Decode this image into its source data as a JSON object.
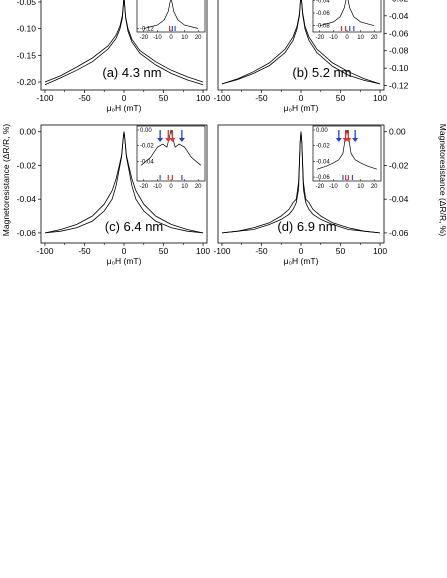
{
  "figure": {
    "shared_ylabel_left": "Magnetoresistance (ΔR/R, %)",
    "shared_ylabel_right": "Magnetoresistance (ΔR/R, %)",
    "xlabel": "μ₀H (mT)"
  },
  "chart_data": [
    {
      "type": "line",
      "title": "(a) 4.3 nm",
      "xlabel": "μ₀H (mT)",
      "ylabel": "Magnetoresistance (ΔR/R, %)",
      "xlim": [
        -105,
        105
      ],
      "ylim": [
        -0.215,
        -0.035
      ],
      "xticks": [
        -100,
        -50,
        0,
        50,
        100
      ],
      "yticks": [
        -0.05,
        -0.1,
        -0.15,
        -0.2
      ],
      "ytick_labels": [
        "-0.05",
        "-0.10",
        "-0.15",
        "-0.20"
      ],
      "series": [
        {
          "x": [
            -100,
            -80,
            -60,
            -40,
            -20,
            -10,
            -5,
            -2,
            0,
            2,
            5,
            10,
            20,
            40,
            60,
            80,
            100
          ],
          "y": [
            -0.205,
            -0.192,
            -0.178,
            -0.162,
            -0.138,
            -0.118,
            -0.1,
            -0.08,
            -0.04,
            -0.08,
            -0.105,
            -0.125,
            -0.146,
            -0.168,
            -0.184,
            -0.196,
            -0.205
          ]
        },
        {
          "x": [
            -100,
            -80,
            -60,
            -40,
            -20,
            -10,
            -5,
            -2,
            0,
            2,
            5,
            10,
            20,
            40,
            60,
            80,
            100
          ],
          "y": [
            -0.2,
            -0.188,
            -0.172,
            -0.155,
            -0.132,
            -0.112,
            -0.095,
            -0.075,
            -0.04,
            -0.078,
            -0.1,
            -0.12,
            -0.141,
            -0.162,
            -0.178,
            -0.19,
            -0.2
          ]
        }
      ],
      "inset": {
        "xlim": [
          -25,
          25
        ],
        "ylim": [
          -0.13,
          -0.02
        ],
        "xticks": [
          -20,
          -10,
          0,
          10,
          20
        ],
        "yticks": [
          -0.12
        ],
        "ytick_labels": [
          "-0.12"
        ],
        "series": [
          {
            "x": [
              -20,
              -10,
              -5,
              -2,
              0,
              2,
              5,
              10,
              20
            ],
            "y": [
              -0.12,
              -0.11,
              -0.095,
              -0.07,
              -0.03,
              -0.07,
              -0.095,
              -0.11,
              -0.12
            ]
          }
        ],
        "markers": [
          {
            "x": -1,
            "color": "#e03030"
          },
          {
            "x": 1,
            "color": "#3050d0"
          },
          {
            "x": 3,
            "color": "#3050d0"
          }
        ]
      }
    },
    {
      "type": "line",
      "title": "(b) 5.2 nm",
      "xlabel": "μ₀H (mT)",
      "ylabel": "Magnetoresistance (ΔR/R, %)",
      "xlim": [
        -105,
        105
      ],
      "ylim": [
        -0.125,
        -0.015
      ],
      "xticks": [
        -100,
        -50,
        0,
        50,
        100
      ],
      "yticks": [
        -0.02,
        -0.04,
        -0.06,
        -0.08,
        -0.1,
        -0.12
      ],
      "ytick_labels": [
        "-0.02",
        "-0.04",
        "-0.06",
        "-0.08",
        "-0.10",
        "-0.12"
      ],
      "series": [
        {
          "x": [
            -100,
            -80,
            -60,
            -40,
            -20,
            -10,
            -5,
            -2,
            0,
            2,
            5,
            10,
            20,
            40,
            60,
            80,
            100
          ],
          "y": [
            -0.118,
            -0.112,
            -0.104,
            -0.094,
            -0.078,
            -0.064,
            -0.052,
            -0.038,
            -0.015,
            -0.038,
            -0.055,
            -0.068,
            -0.082,
            -0.098,
            -0.108,
            -0.114,
            -0.118
          ]
        },
        {
          "x": [
            -100,
            -80,
            -60,
            -40,
            -20,
            -10,
            -5,
            -2,
            0,
            2,
            5,
            10,
            20,
            40,
            60,
            80,
            100
          ],
          "y": [
            -0.118,
            -0.113,
            -0.106,
            -0.097,
            -0.082,
            -0.068,
            -0.055,
            -0.04,
            -0.015,
            -0.036,
            -0.052,
            -0.064,
            -0.078,
            -0.094,
            -0.104,
            -0.112,
            -0.118
          ]
        }
      ],
      "inset": {
        "xlim": [
          -25,
          25
        ],
        "ylim": [
          -0.09,
          -0.03
        ],
        "xticks": [
          -20,
          -10,
          0,
          10,
          20
        ],
        "yticks": [
          -0.04,
          -0.06,
          -0.08
        ],
        "ytick_labels": [
          "-0.04",
          "-0.06",
          "-0.08"
        ],
        "series": [
          {
            "x": [
              -20,
              -10,
              -5,
              -2,
              0,
              2,
              5,
              10,
              20
            ],
            "y": [
              -0.08,
              -0.074,
              -0.066,
              -0.052,
              -0.032,
              -0.052,
              -0.066,
              -0.074,
              -0.08
            ]
          }
        ],
        "markers": [
          {
            "x": -4,
            "color": "#e03030"
          },
          {
            "x": -1,
            "color": "#e03030"
          },
          {
            "x": 2,
            "color": "#3050d0"
          },
          {
            "x": 5,
            "color": "#3050d0"
          }
        ]
      }
    },
    {
      "type": "line",
      "title": "(c) 6.4 nm",
      "xlabel": "μ₀H (mT)",
      "ylabel": "Magnetoresistance (ΔR/R, %)",
      "xlim": [
        -105,
        105
      ],
      "ylim": [
        -0.066,
        0.004
      ],
      "xticks": [
        -100,
        -50,
        0,
        50,
        100
      ],
      "yticks": [
        0.0,
        -0.02,
        -0.04,
        -0.06
      ],
      "ytick_labels": [
        "0.00",
        "-0.02",
        "-0.04",
        "-0.06"
      ],
      "series": [
        {
          "x": [
            -100,
            -80,
            -60,
            -40,
            -25,
            -15,
            -10,
            -6,
            -3,
            -1,
            0,
            1,
            3,
            6,
            10,
            15,
            25,
            40,
            60,
            80,
            100
          ],
          "y": [
            -0.06,
            -0.058,
            -0.055,
            -0.05,
            -0.043,
            -0.035,
            -0.028,
            -0.02,
            -0.014,
            -0.004,
            0.0,
            -0.004,
            -0.015,
            -0.022,
            -0.032,
            -0.04,
            -0.047,
            -0.053,
            -0.057,
            -0.059,
            -0.06
          ]
        },
        {
          "x": [
            -100,
            -80,
            -60,
            -40,
            -25,
            -15,
            -10,
            -6,
            -3,
            -1,
            0,
            1,
            3,
            6,
            10,
            15,
            25,
            40,
            60,
            80,
            100
          ],
          "y": [
            -0.06,
            -0.059,
            -0.057,
            -0.053,
            -0.047,
            -0.04,
            -0.032,
            -0.022,
            -0.015,
            -0.004,
            0.0,
            -0.004,
            -0.014,
            -0.02,
            -0.028,
            -0.035,
            -0.043,
            -0.05,
            -0.055,
            -0.058,
            -0.06
          ]
        }
      ],
      "inset": {
        "xlim": [
          -25,
          25
        ],
        "ylim": [
          -0.065,
          0.005
        ],
        "xticks": [
          -20,
          -10,
          0,
          10,
          20
        ],
        "yticks": [
          0.0,
          -0.02,
          -0.04
        ],
        "ytick_labels": [
          "0.00",
          "-0.02",
          "-0.04"
        ],
        "series": [
          {
            "x": [
              -22,
              -15,
              -10,
              -6,
              -3,
              -1,
              0,
              1,
              3,
              6,
              10,
              15,
              22
            ],
            "y": [
              -0.045,
              -0.035,
              -0.022,
              -0.018,
              -0.022,
              -0.008,
              0.0,
              -0.008,
              -0.022,
              -0.018,
              -0.022,
              -0.035,
              -0.045
            ]
          }
        ],
        "arrows": [
          {
            "x": -8,
            "color": "#2040d0"
          },
          {
            "x": -2,
            "color": "#e03030"
          },
          {
            "x": 1,
            "color": "#e03030"
          },
          {
            "x": 8,
            "color": "#2040d0"
          }
        ],
        "markers": [
          {
            "x": -8,
            "color": "#3050d0"
          },
          {
            "x": -2,
            "color": "#e03030"
          },
          {
            "x": 1,
            "color": "#e03030"
          },
          {
            "x": 8,
            "color": "#3050d0"
          }
        ]
      }
    },
    {
      "type": "line",
      "title": "(d) 6.9 nm",
      "xlabel": "μ₀H (mT)",
      "ylabel": "Magnetoresistance (ΔR/R, %)",
      "xlim": [
        -105,
        105
      ],
      "ylim": [
        -0.066,
        0.004
      ],
      "xticks": [
        -100,
        -50,
        0,
        50,
        100
      ],
      "yticks": [
        0.0,
        -0.02,
        -0.04,
        -0.06
      ],
      "ytick_labels": [
        "0.00",
        "-0.02",
        "-0.04",
        "-0.06"
      ],
      "series": [
        {
          "x": [
            -100,
            -80,
            -60,
            -40,
            -25,
            -15,
            -10,
            -6,
            -3,
            -1,
            0,
            1,
            3,
            6,
            10,
            15,
            25,
            40,
            60,
            80,
            100
          ],
          "y": [
            -0.06,
            -0.059,
            -0.057,
            -0.054,
            -0.05,
            -0.046,
            -0.042,
            -0.04,
            -0.03,
            -0.006,
            0.0,
            -0.006,
            -0.034,
            -0.042,
            -0.046,
            -0.049,
            -0.052,
            -0.055,
            -0.058,
            -0.059,
            -0.06
          ]
        },
        {
          "x": [
            -100,
            -80,
            -60,
            -40,
            -25,
            -15,
            -10,
            -6,
            -3,
            -1,
            0,
            1,
            3,
            6,
            10,
            15,
            25,
            40,
            60,
            80,
            100
          ],
          "y": [
            -0.06,
            -0.059,
            -0.058,
            -0.055,
            -0.052,
            -0.049,
            -0.046,
            -0.042,
            -0.034,
            -0.006,
            0.0,
            -0.006,
            -0.03,
            -0.04,
            -0.042,
            -0.046,
            -0.05,
            -0.054,
            -0.057,
            -0.059,
            -0.06
          ]
        }
      ],
      "inset": {
        "xlim": [
          -25,
          25
        ],
        "ylim": [
          -0.065,
          0.005
        ],
        "xticks": [
          -20,
          -10,
          0,
          10,
          20
        ],
        "yticks": [
          0.0,
          -0.02,
          -0.04,
          -0.06
        ],
        "ytick_labels": [
          "0.00",
          "-0.02",
          "-0.04",
          "-0.06"
        ],
        "series": [
          {
            "x": [
              -22,
              -15,
              -10,
              -6,
              -3,
              -1,
              0,
              1,
              3,
              6,
              10,
              15,
              22
            ],
            "y": [
              -0.05,
              -0.046,
              -0.042,
              -0.038,
              -0.03,
              -0.008,
              0.0,
              -0.008,
              -0.03,
              -0.038,
              -0.042,
              -0.046,
              -0.05
            ]
          }
        ],
        "arrows": [
          {
            "x": -6,
            "color": "#2040d0"
          },
          {
            "x": -1,
            "color": "#e03030"
          },
          {
            "x": 1,
            "color": "#e03030"
          },
          {
            "x": 6,
            "color": "#2040d0"
          }
        ],
        "markers": [
          {
            "x": -3,
            "color": "#3050d0"
          },
          {
            "x": -1,
            "color": "#e03030"
          },
          {
            "x": 1,
            "color": "#e03030"
          },
          {
            "x": 4,
            "color": "#3050d0"
          }
        ]
      }
    }
  ]
}
